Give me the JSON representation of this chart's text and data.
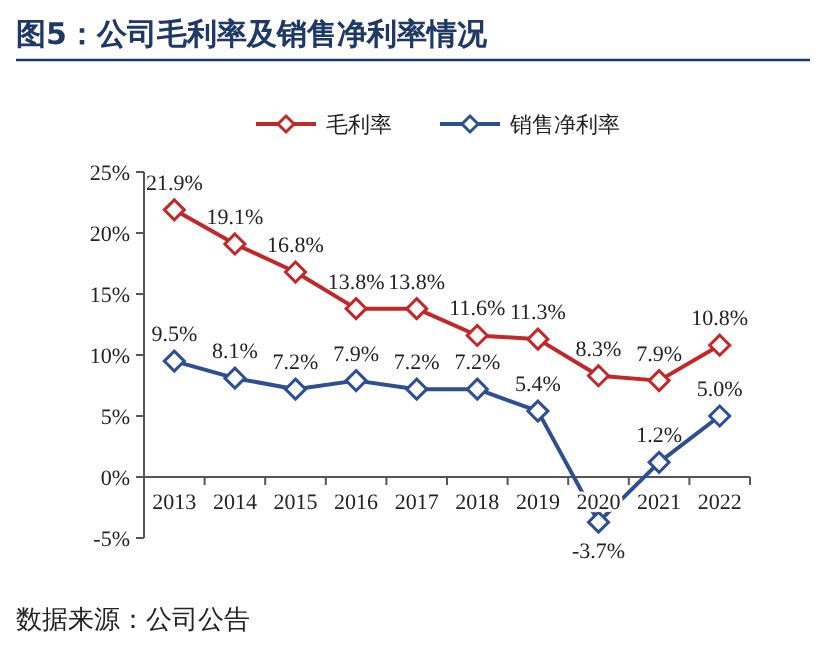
{
  "chart_data": {
    "type": "line",
    "title": "图5：公司毛利率及销售净利率情况",
    "annotations": [
      "数据来源：公司公告"
    ],
    "categories": [
      "2013",
      "2014",
      "2015",
      "2016",
      "2017",
      "2018",
      "2019",
      "2020",
      "2021",
      "2022"
    ],
    "series": [
      {
        "name": "毛利率",
        "color": "#c0282a",
        "values": [
          21.9,
          19.1,
          16.8,
          13.8,
          13.8,
          11.6,
          11.3,
          8.3,
          7.9,
          10.8
        ],
        "value_labels": [
          "21.9%",
          "19.1%",
          "16.8%",
          "13.8%",
          "13.8%",
          "11.6%",
          "11.3%",
          "8.3%",
          "7.9%",
          "10.8%"
        ]
      },
      {
        "name": "销售净利率",
        "color": "#2f4f8f",
        "values": [
          9.5,
          8.1,
          7.2,
          7.9,
          7.2,
          7.2,
          5.4,
          -3.7,
          1.2,
          5.0
        ],
        "value_labels": [
          "9.5%",
          "8.1%",
          "7.2%",
          "7.9%",
          "7.2%",
          "7.2%",
          "5.4%",
          "-3.7%",
          "1.2%",
          "5.0%"
        ]
      }
    ],
    "ylim": [
      -5,
      25
    ],
    "yticks": [
      {
        "value": -5,
        "label": "-5%"
      },
      {
        "value": 0,
        "label": "0%"
      },
      {
        "value": 5,
        "label": "5%"
      },
      {
        "value": 10,
        "label": "10%"
      },
      {
        "value": 15,
        "label": "15%"
      },
      {
        "value": 20,
        "label": "20%"
      },
      {
        "value": 25,
        "label": "25%"
      }
    ],
    "legend": "top",
    "marker": "diamond",
    "line_style": "solid",
    "grid": false
  }
}
